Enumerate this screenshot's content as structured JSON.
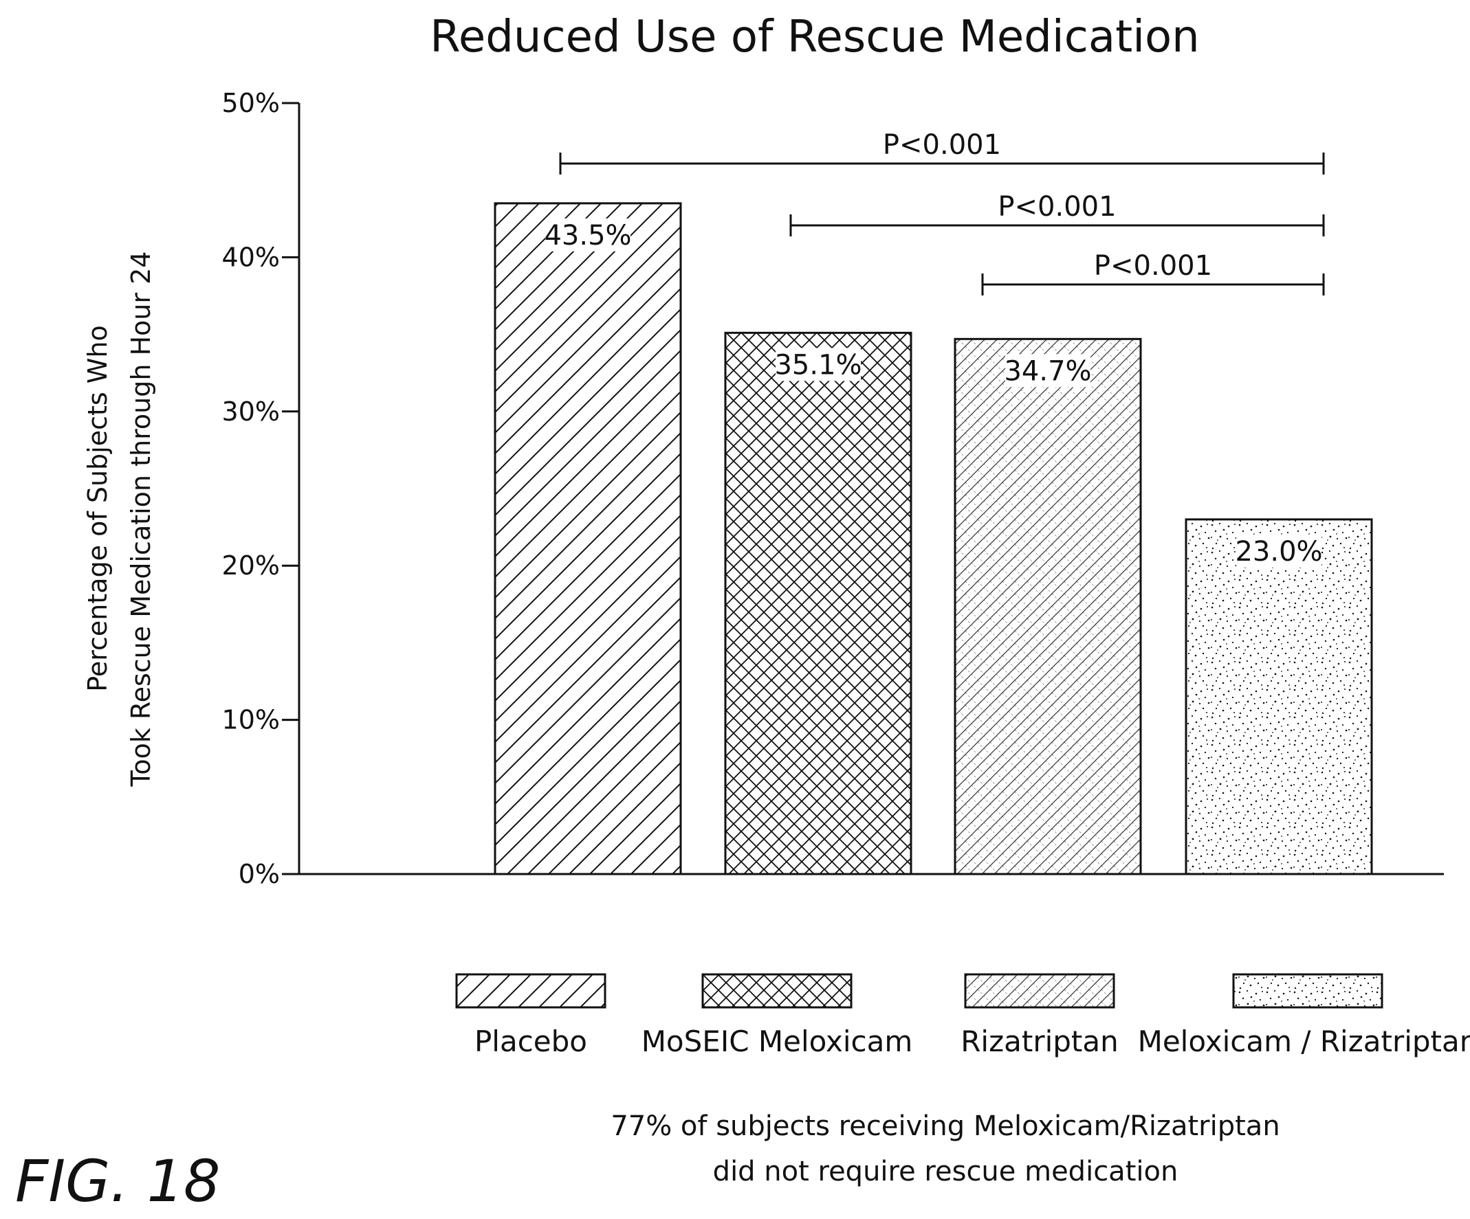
{
  "figure_label": "FIG. 18",
  "footnote": {
    "line1": "77% of subjects receiving Meloxicam/Rizatriptan",
    "line2": "did not require rescue medication"
  },
  "chart_data": {
    "type": "bar",
    "title": "Reduced Use of Rescue Medication",
    "ylabel_lines": [
      "Percentage of Subjects Who",
      "Took Rescue Medication through Hour 24"
    ],
    "xlabel": "",
    "ylim": [
      0,
      50
    ],
    "yticks": [
      0,
      10,
      20,
      30,
      40,
      50
    ],
    "ytick_labels": [
      "0%",
      "10%",
      "20%",
      "30%",
      "40%",
      "50%"
    ],
    "categories": [
      "Placebo",
      "MoSEIC Meloxicam",
      "Rizatriptan",
      "Meloxicam / Rizatriptan"
    ],
    "values": [
      43.5,
      35.1,
      34.7,
      23.0
    ],
    "value_labels": [
      "43.5%",
      "35.1%",
      "34.7%",
      "23.0%"
    ],
    "patterns": [
      "diagonal-hatch",
      "cross-hatch",
      "fine-cross-hatch",
      "stipple"
    ],
    "legend": {
      "placement": "bottom"
    },
    "grid": false,
    "significance": [
      {
        "from": 0,
        "to": 3,
        "label": "P<0.001"
      },
      {
        "from": 1,
        "to": 3,
        "label": "P<0.001"
      },
      {
        "from": 2,
        "to": 3,
        "label": "P<0.001"
      }
    ]
  }
}
